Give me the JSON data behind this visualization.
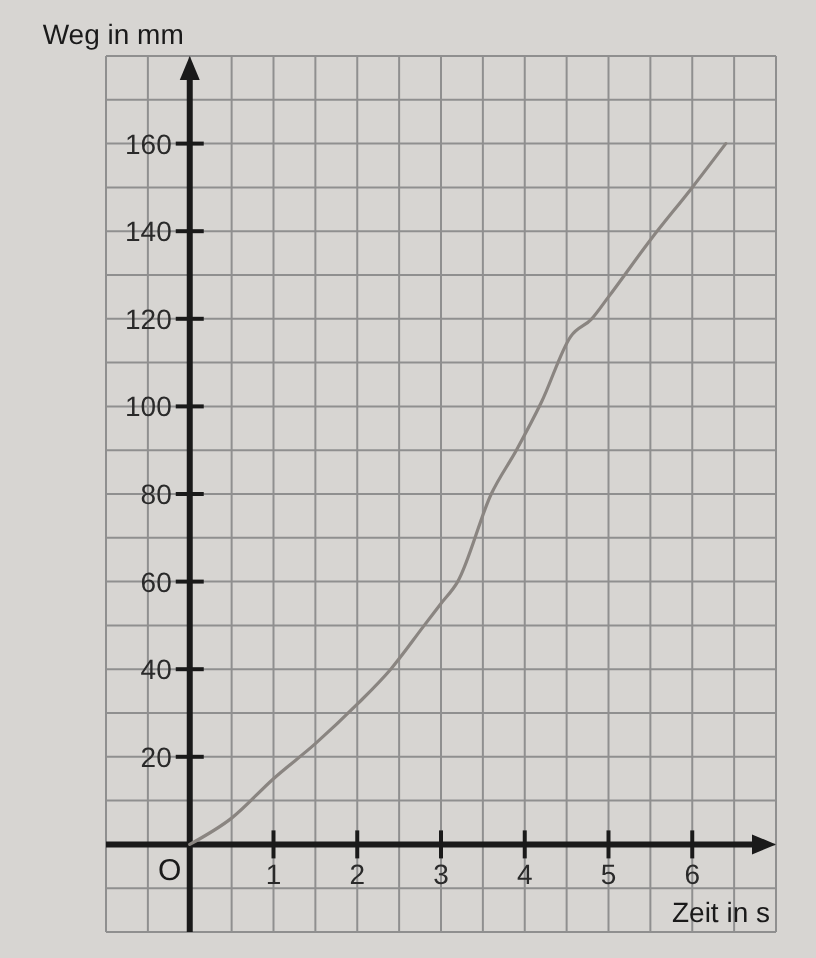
{
  "chart_data": {
    "type": "line",
    "xlabel": "Zeit in s",
    "ylabel": "Weg in mm",
    "x": [
      0,
      0.5,
      1,
      1.5,
      2,
      2.4,
      2.8,
      3,
      3.2,
      3.6,
      3.9,
      4.2,
      4.55,
      4.8,
      5,
      5.5,
      6,
      6.4
    ],
    "series": [
      {
        "color": "#8a8581",
        "values": [
          0,
          6,
          15,
          23,
          32,
          40,
          50,
          55,
          60,
          80,
          90,
          101,
          116,
          120,
          125,
          138,
          150,
          160
        ]
      }
    ],
    "xlim": [
      -1,
      7
    ],
    "ylim": [
      -20,
      180
    ],
    "xticks": [
      1,
      2,
      3,
      4,
      5,
      6
    ],
    "yticks": [
      20,
      40,
      60,
      80,
      100,
      120,
      140,
      160
    ],
    "grid": true,
    "annotations": [
      {
        "text": "O",
        "x": 0,
        "y": 0
      }
    ]
  }
}
